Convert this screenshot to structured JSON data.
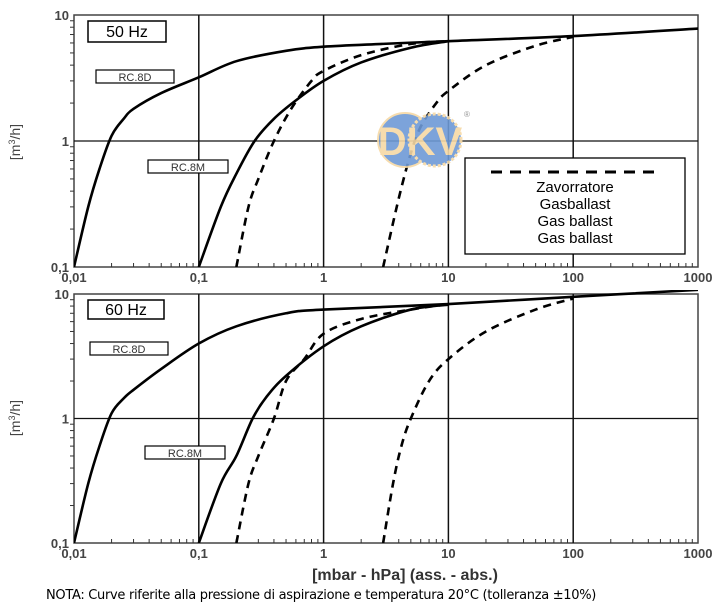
{
  "chart_data": [
    {
      "type": "line",
      "panel_label": "50 Hz",
      "x_scale": "log",
      "y_scale": "log",
      "xlim": [
        0.01,
        1000
      ],
      "ylim": [
        0.1,
        10
      ],
      "x_ticks": [
        "0,01",
        "0,1",
        "1",
        "10",
        "100",
        "1000"
      ],
      "y_ticks": [
        "10",
        "1",
        "0,1"
      ],
      "ylabel": "[m3/h]",
      "grid": true,
      "series": [
        {
          "name": "RC.8D",
          "style": "solid",
          "points": [
            [
              0.01,
              0.1
            ],
            [
              0.013,
              0.3
            ],
            [
              0.016,
              0.6
            ],
            [
              0.02,
              1.1
            ],
            [
              0.025,
              1.5
            ],
            [
              0.03,
              1.8
            ],
            [
              0.05,
              2.4
            ],
            [
              0.1,
              3.2
            ],
            [
              0.2,
              4.3
            ],
            [
              0.5,
              5.2
            ],
            [
              1,
              5.6
            ],
            [
              3,
              5.9
            ],
            [
              10,
              6.2
            ],
            [
              100,
              6.8
            ],
            [
              1000,
              7.8
            ]
          ]
        },
        {
          "name": "RC.8D",
          "style": "dashed",
          "points": [
            [
              3,
              0.1
            ],
            [
              4,
              0.35
            ],
            [
              5,
              0.8
            ],
            [
              6,
              1.3
            ],
            [
              8,
              2
            ],
            [
              10,
              2.5
            ],
            [
              20,
              4
            ],
            [
              50,
              5.7
            ],
            [
              100,
              6.7
            ]
          ]
        },
        {
          "name": "RC.8M",
          "style": "solid",
          "points": [
            [
              0.1,
              0.1
            ],
            [
              0.15,
              0.3
            ],
            [
              0.2,
              0.55
            ],
            [
              0.28,
              1
            ],
            [
              0.4,
              1.5
            ],
            [
              0.6,
              2.1
            ],
            [
              1,
              3
            ],
            [
              2,
              4.2
            ],
            [
              5,
              5.5
            ],
            [
              10,
              6.2
            ]
          ]
        },
        {
          "name": "RC.8M",
          "style": "dashed",
          "points": [
            [
              0.2,
              0.1
            ],
            [
              0.25,
              0.3
            ],
            [
              0.3,
              0.5
            ],
            [
              0.4,
              1
            ],
            [
              0.55,
              1.8
            ],
            [
              0.8,
              3
            ],
            [
              1,
              3.6
            ],
            [
              2,
              4.8
            ],
            [
              5,
              5.9
            ],
            [
              10,
              6.2
            ]
          ]
        }
      ]
    },
    {
      "type": "line",
      "panel_label": "60 Hz",
      "x_scale": "log",
      "y_scale": "log",
      "xlim": [
        0.01,
        1000
      ],
      "ylim": [
        0.1,
        10
      ],
      "x_ticks": [
        "0,01",
        "0,1",
        "1",
        "10",
        "100",
        "1000"
      ],
      "y_ticks": [
        "10",
        "1",
        "0,1"
      ],
      "ylabel": "[m3/h]",
      "xlabel": "[mbar - hPa] (ass. - abs.)",
      "grid": true,
      "series": [
        {
          "name": "RC.8D",
          "style": "solid",
          "points": [
            [
              0.01,
              0.1
            ],
            [
              0.013,
              0.3
            ],
            [
              0.016,
              0.6
            ],
            [
              0.02,
              1.1
            ],
            [
              0.025,
              1.45
            ],
            [
              0.03,
              1.7
            ],
            [
              0.05,
              2.5
            ],
            [
              0.1,
              4
            ],
            [
              0.2,
              5.5
            ],
            [
              0.5,
              7
            ],
            [
              1,
              7.5
            ],
            [
              10,
              8.3
            ],
            [
              100,
              9.5
            ],
            [
              1000,
              10.8
            ]
          ]
        },
        {
          "name": "RC.8D",
          "style": "dashed",
          "points": [
            [
              3,
              0.1
            ],
            [
              3.6,
              0.3
            ],
            [
              4.2,
              0.6
            ],
            [
              5,
              1
            ],
            [
              7,
              2
            ],
            [
              10,
              3
            ],
            [
              20,
              5
            ],
            [
              50,
              7.5
            ],
            [
              100,
              9.2
            ]
          ]
        },
        {
          "name": "RC.8M",
          "style": "solid",
          "points": [
            [
              0.1,
              0.1
            ],
            [
              0.15,
              0.3
            ],
            [
              0.2,
              0.5
            ],
            [
              0.27,
              1
            ],
            [
              0.35,
              1.5
            ],
            [
              0.5,
              2.2
            ],
            [
              1,
              3.8
            ],
            [
              2,
              5.5
            ],
            [
              5,
              7.5
            ],
            [
              10,
              8.2
            ]
          ]
        },
        {
          "name": "RC.8M",
          "style": "dashed",
          "points": [
            [
              0.2,
              0.1
            ],
            [
              0.25,
              0.3
            ],
            [
              0.3,
              0.5
            ],
            [
              0.4,
              1
            ],
            [
              0.5,
              2
            ],
            [
              0.7,
              3
            ],
            [
              1,
              4.8
            ],
            [
              2,
              6.3
            ],
            [
              5,
              7.5
            ],
            [
              10,
              8.3
            ]
          ]
        }
      ]
    }
  ],
  "legend": {
    "dashed_meaning": [
      "Zavorratore",
      "Gasballast",
      "Gas ballast",
      "Gas ballast"
    ]
  },
  "labels": {
    "rc8d": "RC.8D",
    "rc8m": "RC.8M",
    "hz50": "50 Hz",
    "hz60": "60 Hz",
    "ylabel_base": "[m",
    "ylabel_sup": "3",
    "ylabel_end": "/h]",
    "xlabel": "[mbar - hPa] (ass. - abs.)"
  },
  "logo": {
    "text": "DKV",
    "mark": "®",
    "colors": [
      "#6e9ad6",
      "#f6d9a6"
    ]
  },
  "note": "NOTA:  Curve riferite alla pressione di aspirazione e temperatura 20°C (tolleranza ±10%)"
}
